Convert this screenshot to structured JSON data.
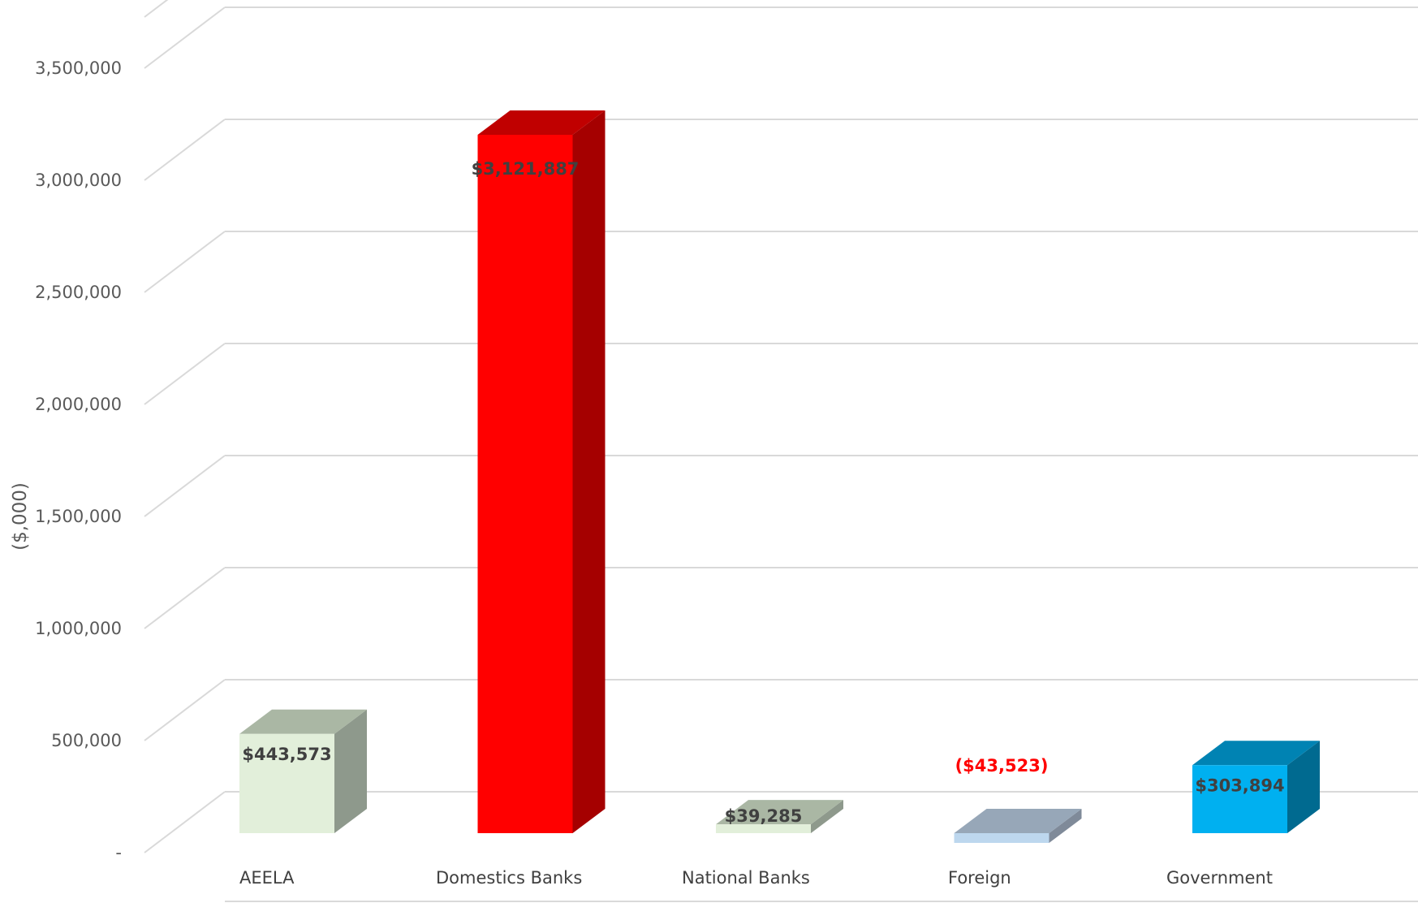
{
  "chart_data": {
    "type": "bar",
    "ylabel": "($,000)",
    "ylim": [
      0,
      3500000
    ],
    "ytick_labels": [
      "-",
      "500,000",
      "1,000,000",
      "1,500,000",
      "2,000,000",
      "2,500,000",
      "3,000,000",
      "3,500,000"
    ],
    "ytick_values": [
      0,
      500000,
      1000000,
      1500000,
      2000000,
      2500000,
      3000000,
      3500000
    ],
    "grid": true,
    "categories": [
      "AEELA",
      "Domestics Banks",
      "National Banks",
      "Foreign",
      "Government"
    ],
    "values": [
      443573,
      3121887,
      39285,
      -43523,
      303894
    ],
    "data_labels": [
      "$443,573",
      "$3,121,887",
      "$39,285",
      "($43,523)",
      "$303,894"
    ],
    "bar_colors": [
      {
        "front": "#E2EFDA",
        "side": "#8E998C",
        "top": "#AAB7A4",
        "label": "#404040"
      },
      {
        "front": "#FF0000",
        "side": "#A50000",
        "top": "#C00000",
        "label": "#404040"
      },
      {
        "front": "#E2EFDA",
        "side": "#8E998C",
        "top": "#AAB7A4",
        "label": "#404040"
      },
      {
        "front": "#BDD7EE",
        "side": "#7F8A99",
        "top": "#97A7B8",
        "label": "#FF0000"
      },
      {
        "front": "#00B0F0",
        "side": "#006A90",
        "top": "#0083B3",
        "label": "#404040"
      }
    ]
  }
}
